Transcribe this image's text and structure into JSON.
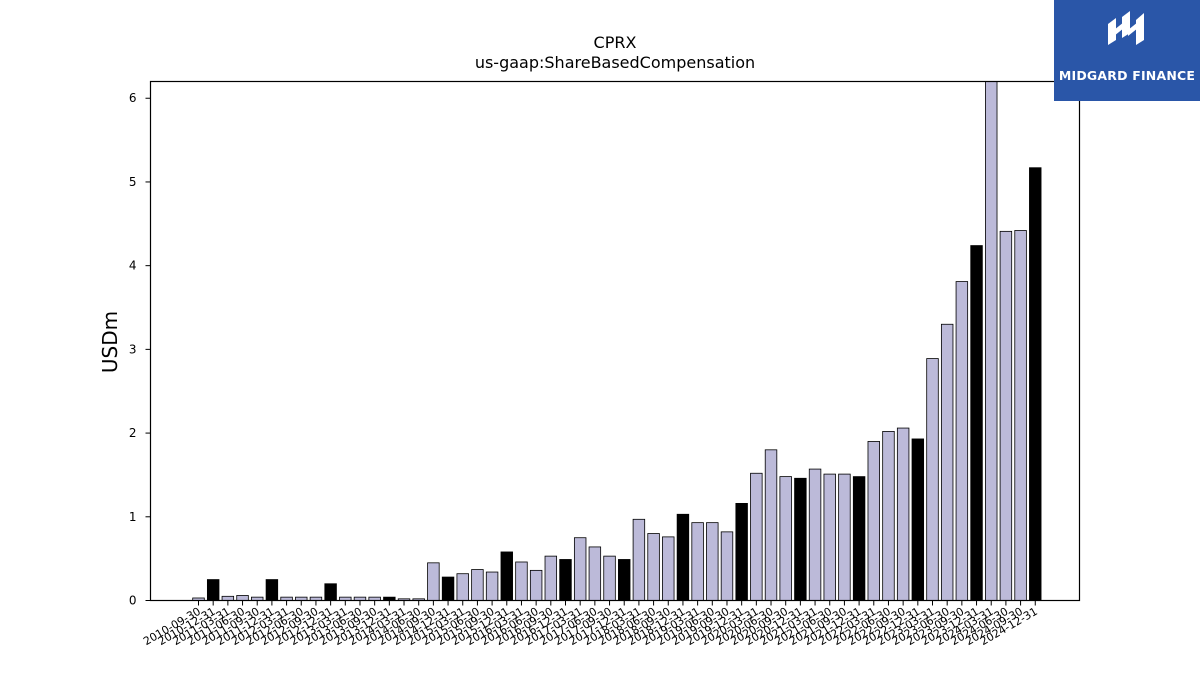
{
  "brand": {
    "name": "MIDGARD FINANCE",
    "logo_icon": "midgard-m-icon",
    "color": "#2a56a8"
  },
  "colors": {
    "bar_light": "#bcbad9",
    "bar_dark": "#000000"
  },
  "chart_data": {
    "type": "bar",
    "title": "CPRX",
    "subtitle": "us-gaap:ShareBasedCompensation",
    "xlabel": "",
    "ylabel": "USDm",
    "ylim": [
      0,
      6.2
    ],
    "yticks": [
      0,
      1,
      2,
      3,
      4,
      5,
      6
    ],
    "grid": false,
    "dark_bars_note_categories": [
      "2010-12-31",
      "2011-12-31",
      "2012-12-31",
      "2013-12-31",
      "2014-12-31",
      "2015-12-31",
      "2016-12-31",
      "2017-12-31",
      "2018-12-31",
      "2019-12-31",
      "2020-12-31",
      "2021-12-31",
      "2022-12-31",
      "2023-12-31",
      "2024-12-31"
    ],
    "categories": [
      "2010-09-30",
      "2010-12-31",
      "2011-03-31",
      "2011-06-30",
      "2011-09-30",
      "2011-12-31",
      "2012-03-31",
      "2012-06-30",
      "2012-09-30",
      "2012-12-31",
      "2013-03-31",
      "2013-06-30",
      "2013-09-30",
      "2013-12-31",
      "2014-03-31",
      "2014-06-30",
      "2014-09-30",
      "2014-12-31",
      "2015-03-31",
      "2015-06-30",
      "2015-09-30",
      "2015-12-31",
      "2016-03-31",
      "2016-06-30",
      "2016-09-30",
      "2016-12-31",
      "2017-03-31",
      "2017-06-30",
      "2017-09-30",
      "2017-12-31",
      "2018-03-31",
      "2018-06-30",
      "2018-09-30",
      "2018-12-31",
      "2019-03-31",
      "2019-06-30",
      "2019-09-30",
      "2019-12-31",
      "2020-03-31",
      "2020-06-30",
      "2020-09-30",
      "2020-12-31",
      "2021-03-31",
      "2021-06-30",
      "2021-09-30",
      "2021-12-31",
      "2022-03-31",
      "2022-06-30",
      "2022-09-30",
      "2022-12-31",
      "2023-03-31",
      "2023-06-30",
      "2023-09-30",
      "2023-12-31",
      "2024-03-31",
      "2024-06-30",
      "2024-09-30",
      "2024-12-31"
    ],
    "values": [
      0.03,
      0.25,
      0.05,
      0.06,
      0.04,
      0.25,
      0.04,
      0.04,
      0.04,
      0.2,
      0.04,
      0.04,
      0.04,
      0.04,
      0.02,
      0.02,
      0.45,
      0.28,
      0.32,
      0.37,
      0.34,
      0.58,
      0.46,
      0.36,
      0.53,
      0.49,
      0.75,
      0.64,
      0.53,
      0.49,
      0.97,
      0.8,
      0.76,
      1.03,
      0.93,
      0.93,
      0.82,
      1.16,
      1.52,
      1.8,
      1.48,
      1.46,
      1.57,
      1.51,
      1.51,
      1.48,
      1.9,
      2.02,
      2.06,
      1.93,
      2.89,
      3.3,
      3.81,
      4.24,
      6.2,
      4.41,
      4.42,
      5.17
    ],
    "dark": [
      false,
      true,
      false,
      false,
      false,
      true,
      false,
      false,
      false,
      true,
      false,
      false,
      false,
      true,
      false,
      false,
      false,
      true,
      false,
      false,
      false,
      true,
      false,
      false,
      false,
      true,
      false,
      false,
      false,
      true,
      false,
      false,
      false,
      true,
      false,
      false,
      false,
      true,
      false,
      false,
      false,
      true,
      false,
      false,
      false,
      true,
      false,
      false,
      false,
      true,
      false,
      false,
      false,
      true,
      false,
      false,
      false,
      true
    ]
  }
}
